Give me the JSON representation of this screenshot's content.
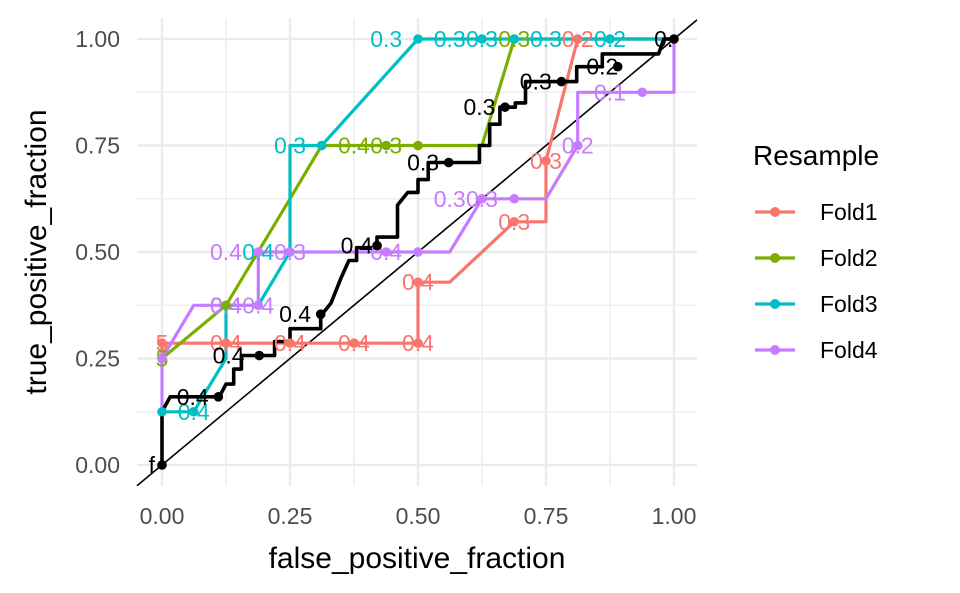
{
  "chart_data": {
    "type": "line",
    "xlabel": "false_positive_fraction",
    "ylabel": "true_positive_fraction",
    "xlim": [
      0,
      1
    ],
    "ylim": [
      0,
      1
    ],
    "x_ticks": [
      "0.00",
      "0.25",
      "0.50",
      "0.75",
      "1.00"
    ],
    "y_ticks": [
      "0.00",
      "0.25",
      "0.50",
      "0.75",
      "1.00"
    ],
    "grid": true,
    "reference_line": "diagonal",
    "legend": {
      "title": "Resample",
      "placement": "right",
      "entries": [
        "Fold1",
        "Fold2",
        "Fold3",
        "Fold4"
      ]
    },
    "series": [
      {
        "name": "Fold1",
        "color": "#F8766D",
        "steps": [
          [
            0,
            0.25
          ],
          [
            0,
            0.286
          ],
          [
            0.25,
            0.286
          ],
          [
            0.5,
            0.286
          ],
          [
            0.5,
            0.429
          ],
          [
            0.562,
            0.429
          ],
          [
            0.688,
            0.571
          ],
          [
            0.75,
            0.571
          ],
          [
            0.75,
            0.714
          ],
          [
            0.812,
            1
          ],
          [
            1,
            1
          ]
        ],
        "points": [
          [
            0,
            0.286
          ],
          [
            0.125,
            0.286
          ],
          [
            0.25,
            0.286
          ],
          [
            0.375,
            0.286
          ],
          [
            0.5,
            0.286
          ],
          [
            0.5,
            0.429
          ],
          [
            0.688,
            0.571
          ],
          [
            0.75,
            0.714
          ],
          [
            0.812,
            1
          ]
        ],
        "labels": [
          {
            "x": 0,
            "y": 0.286,
            "text": "5"
          },
          {
            "x": 0.125,
            "y": 0.286,
            "text": "0.4"
          },
          {
            "x": 0.25,
            "y": 0.286,
            "text": "0.4"
          },
          {
            "x": 0.375,
            "y": 0.286,
            "text": "0.4"
          },
          {
            "x": 0.5,
            "y": 0.286,
            "text": "0.4"
          },
          {
            "x": 0.5,
            "y": 0.429,
            "text": "0.4"
          },
          {
            "x": 0.688,
            "y": 0.571,
            "text": "0.3"
          },
          {
            "x": 0.75,
            "y": 0.714,
            "text": "0.3"
          },
          {
            "x": 0.812,
            "y": 1,
            "text": "0.2"
          }
        ]
      },
      {
        "name": "Fold2",
        "color": "#7CAE00",
        "steps": [
          [
            0,
            0.25
          ],
          [
            0.125,
            0.375
          ],
          [
            0.25,
            0.625
          ],
          [
            0.312,
            0.75
          ],
          [
            0.625,
            0.75
          ],
          [
            0.688,
            1
          ],
          [
            1,
            1
          ]
        ],
        "points": [
          [
            0,
            0.25
          ],
          [
            0.125,
            0.375
          ],
          [
            0.312,
            0.75
          ],
          [
            0.438,
            0.75
          ],
          [
            0.5,
            0.75
          ],
          [
            0.688,
            1
          ]
        ],
        "labels": [
          {
            "x": 0,
            "y": 0.25,
            "text": "5"
          },
          {
            "x": 0.125,
            "y": 0.375,
            "text": "0.4"
          },
          {
            "x": 0.375,
            "y": 0.75,
            "text": "0.4"
          },
          {
            "x": 0.438,
            "y": 0.75,
            "text": "0.3"
          },
          {
            "x": 0.688,
            "y": 1,
            "text": "0.3"
          }
        ]
      },
      {
        "name": "Fold3",
        "color": "#00BFC4",
        "steps": [
          [
            0,
            0.125
          ],
          [
            0.062,
            0.125
          ],
          [
            0.125,
            0.25
          ],
          [
            0.125,
            0.375
          ],
          [
            0.188,
            0.375
          ],
          [
            0.25,
            0.5
          ],
          [
            0.25,
            0.75
          ],
          [
            0.312,
            0.75
          ],
          [
            0.5,
            1
          ],
          [
            1,
            1
          ]
        ],
        "points": [
          [
            0,
            0.125
          ],
          [
            0.062,
            0.125
          ],
          [
            0.188,
            0.375
          ],
          [
            0.25,
            0.5
          ],
          [
            0.312,
            0.75
          ],
          [
            0.5,
            1
          ],
          [
            0.625,
            1
          ],
          [
            0.688,
            1
          ],
          [
            0.875,
            1
          ]
        ],
        "labels": [
          {
            "x": 0.062,
            "y": 0.125,
            "text": "0.4"
          },
          {
            "x": 0.125,
            "y": 0.375,
            "text": "0.4"
          },
          {
            "x": 0.188,
            "y": 0.5,
            "text": "0.4"
          },
          {
            "x": 0.25,
            "y": 0.75,
            "text": "0.3"
          },
          {
            "x": 0.438,
            "y": 1,
            "text": "0.3"
          },
          {
            "x": 0.562,
            "y": 1,
            "text": "0.3"
          },
          {
            "x": 0.625,
            "y": 1,
            "text": "0.3"
          },
          {
            "x": 0.75,
            "y": 1,
            "text": "0.3"
          },
          {
            "x": 0.875,
            "y": 1,
            "text": "0.2"
          }
        ]
      },
      {
        "name": "Fold4",
        "color": "#C77CFF",
        "steps": [
          [
            0,
            0.125
          ],
          [
            0,
            0.25
          ],
          [
            0.062,
            0.375
          ],
          [
            0.188,
            0.375
          ],
          [
            0.188,
            0.5
          ],
          [
            0.562,
            0.5
          ],
          [
            0.625,
            0.625
          ],
          [
            0.75,
            0.625
          ],
          [
            0.812,
            0.75
          ],
          [
            0.812,
            0.875
          ],
          [
            0.938,
            0.875
          ],
          [
            1,
            0.875
          ],
          [
            1,
            1
          ]
        ],
        "points": [
          [
            0,
            0.25
          ],
          [
            0.188,
            0.375
          ],
          [
            0.188,
            0.5
          ],
          [
            0.25,
            0.5
          ],
          [
            0.438,
            0.5
          ],
          [
            0.5,
            0.5
          ],
          [
            0.625,
            0.625
          ],
          [
            0.688,
            0.625
          ],
          [
            0.812,
            0.75
          ],
          [
            0.938,
            0.875
          ]
        ],
        "labels": [
          {
            "x": 0.125,
            "y": 0.375,
            "text": "0.4"
          },
          {
            "x": 0.125,
            "y": 0.5,
            "text": "0.4"
          },
          {
            "x": 0.188,
            "y": 0.375,
            "text": "0.4"
          },
          {
            "x": 0.25,
            "y": 0.5,
            "text": "0.3"
          },
          {
            "x": 0.438,
            "y": 0.5,
            "text": "0.4"
          },
          {
            "x": 0.562,
            "y": 0.625,
            "text": "0.3"
          },
          {
            "x": 0.625,
            "y": 0.625,
            "text": "0.3"
          },
          {
            "x": 0.812,
            "y": 0.75,
            "text": "0.2"
          },
          {
            "x": 0.875,
            "y": 0.875,
            "text": "0.1"
          }
        ]
      },
      {
        "color": "#000000",
        "steps": [
          [
            0,
            0
          ],
          [
            0,
            0.125
          ],
          [
            0.016,
            0.16
          ],
          [
            0.112,
            0.16
          ],
          [
            0.125,
            0.19
          ],
          [
            0.14,
            0.19
          ],
          [
            0.14,
            0.225
          ],
          [
            0.155,
            0.225
          ],
          [
            0.155,
            0.257
          ],
          [
            0.22,
            0.257
          ],
          [
            0.22,
            0.29
          ],
          [
            0.25,
            0.29
          ],
          [
            0.25,
            0.32
          ],
          [
            0.31,
            0.32
          ],
          [
            0.31,
            0.35
          ],
          [
            0.33,
            0.38
          ],
          [
            0.35,
            0.44
          ],
          [
            0.365,
            0.48
          ],
          [
            0.38,
            0.48
          ],
          [
            0.38,
            0.51
          ],
          [
            0.42,
            0.51
          ],
          [
            0.42,
            0.535
          ],
          [
            0.46,
            0.535
          ],
          [
            0.46,
            0.61
          ],
          [
            0.48,
            0.64
          ],
          [
            0.5,
            0.64
          ],
          [
            0.5,
            0.67
          ],
          [
            0.52,
            0.67
          ],
          [
            0.52,
            0.71
          ],
          [
            0.62,
            0.71
          ],
          [
            0.62,
            0.75
          ],
          [
            0.64,
            0.75
          ],
          [
            0.64,
            0.8
          ],
          [
            0.66,
            0.8
          ],
          [
            0.66,
            0.84
          ],
          [
            0.69,
            0.84
          ],
          [
            0.69,
            0.85
          ],
          [
            0.71,
            0.85
          ],
          [
            0.71,
            0.9
          ],
          [
            0.81,
            0.9
          ],
          [
            0.81,
            0.935
          ],
          [
            0.86,
            0.935
          ],
          [
            0.86,
            0.965
          ],
          [
            0.97,
            0.965
          ],
          [
            0.98,
            1
          ],
          [
            1,
            1
          ]
        ],
        "points": [
          [
            0,
            0
          ],
          [
            0.11,
            0.16
          ],
          [
            0.19,
            0.257
          ],
          [
            0.31,
            0.354
          ],
          [
            0.42,
            0.515
          ],
          [
            0.56,
            0.71
          ],
          [
            0.67,
            0.84
          ],
          [
            0.78,
            0.9
          ],
          [
            0.89,
            0.935
          ],
          [
            1,
            1
          ]
        ],
        "labels": [
          {
            "x": -0.02,
            "y": 0,
            "text": "f"
          },
          {
            "x": 0.06,
            "y": 0.16,
            "text": "0.4"
          },
          {
            "x": 0.13,
            "y": 0.257,
            "text": "0.4"
          },
          {
            "x": 0.26,
            "y": 0.354,
            "text": "0.4"
          },
          {
            "x": 0.38,
            "y": 0.515,
            "text": "0.4"
          },
          {
            "x": 0.51,
            "y": 0.71,
            "text": "0.3"
          },
          {
            "x": 0.62,
            "y": 0.84,
            "text": "0.3"
          },
          {
            "x": 0.73,
            "y": 0.9,
            "text": "0.3"
          },
          {
            "x": 0.86,
            "y": 0.935,
            "text": "0.2"
          },
          {
            "x": 0.98,
            "y": 1,
            "text": "0."
          }
        ]
      }
    ]
  }
}
